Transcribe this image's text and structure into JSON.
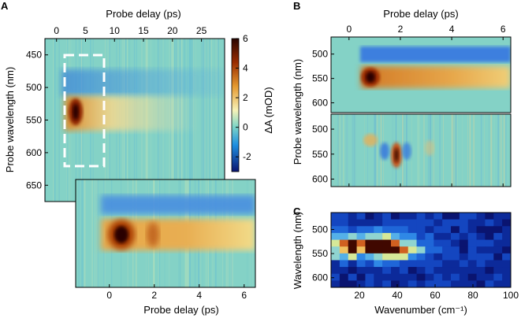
{
  "chart_data": [
    {
      "panel": "A",
      "type": "heatmap",
      "title": "",
      "xlabel": "Probe delay (ps)",
      "ylabel": "Probe wavelength (nm)",
      "x_ticks": [
        "0",
        "5",
        "10",
        "15",
        "20",
        "25"
      ],
      "x_range": [
        -2,
        29
      ],
      "y_ticks": [
        "450",
        "500",
        "550",
        "600",
        "650"
      ],
      "y_range": [
        425,
        675
      ],
      "colorbar": {
        "label": "ΔA (mOD)",
        "ticks": [
          "6",
          "4",
          "2",
          "0",
          "-2"
        ],
        "range": [
          -3,
          6
        ]
      },
      "features": [
        {
          "name": "bleach",
          "wavelength_nm": 500,
          "value_mOD": -1.5
        },
        {
          "name": "excited-state absorption",
          "wavelength_nm": 545,
          "peak_delay_ps": 0,
          "value_mOD": 6,
          "decay_ps": 10
        }
      ],
      "highlight_box": {
        "delay_range_ps": [
          -1.5,
          6.5
        ],
        "wavelength_range_nm": [
          465,
          620
        ]
      }
    },
    {
      "panel": "A-inset",
      "type": "heatmap",
      "xlabel": "Probe delay (ps)",
      "x_ticks": [
        "0",
        "2",
        "4",
        "6"
      ],
      "x_range": [
        -1.5,
        6.5
      ],
      "y_range": [
        465,
        620
      ],
      "features": [
        {
          "name": "bleach",
          "wavelength_nm": 500
        },
        {
          "name": "peak",
          "delay_ps": 0.6,
          "wavelength_nm": 545
        },
        {
          "name": "second peak",
          "delay_ps": 1.8,
          "wavelength_nm": 545
        }
      ]
    },
    {
      "panel": "B-top",
      "type": "heatmap",
      "xlabel": "Probe delay (ps)",
      "ylabel": "Probe wavelength (nm)",
      "x_ticks": [
        "0",
        "2",
        "4",
        "6"
      ],
      "x_range": [
        -0.7,
        6.3
      ],
      "y_ticks": [
        "500",
        "550",
        "600"
      ],
      "y_range": [
        465,
        620
      ]
    },
    {
      "panel": "B-bottom",
      "type": "heatmap",
      "x_range": [
        -0.7,
        6.3
      ],
      "y_ticks": [
        "500",
        "550",
        "600"
      ],
      "y_range": [
        470,
        615
      ],
      "features": [
        {
          "name": "oscillation",
          "delay_ps": 1.5,
          "wavelength_nm": 550
        }
      ]
    },
    {
      "panel": "C",
      "type": "heatmap",
      "xlabel": "Wavenumber (cm⁻¹)",
      "ylabel": "Wavelength (nm)",
      "x_ticks": [
        "20",
        "40",
        "60",
        "80",
        "100"
      ],
      "x_range": [
        5,
        100
      ],
      "y_ticks": [
        "500",
        "550",
        "600"
      ],
      "y_range": [
        465,
        620
      ],
      "features": [
        {
          "name": "mode",
          "wavenumber_cm": 32,
          "wavelength_nm": 545
        }
      ]
    }
  ],
  "panel_labels": {
    "a": "A",
    "b": "B",
    "c": "C"
  }
}
